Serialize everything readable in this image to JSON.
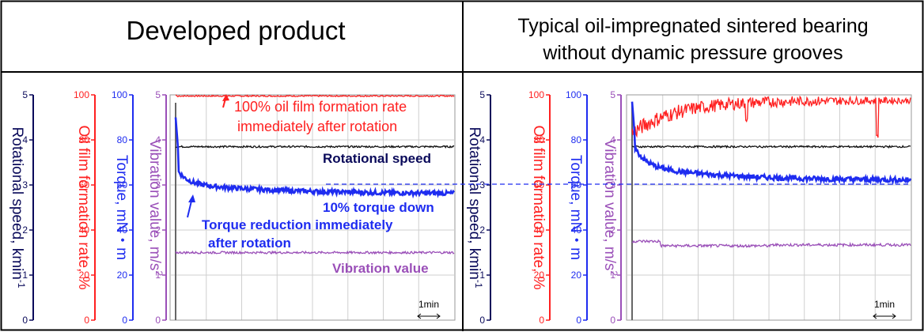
{
  "colors": {
    "rotational_speed": "#0a0a5a",
    "oil_film": "#ff2020",
    "torque": "#1e2cf0",
    "vibration": "#9a4fb8",
    "speed_trace": "#111111",
    "grid": "#cfcfcf",
    "frame": "#000000"
  },
  "chart_data": [
    {
      "type": "line",
      "title": "Developed product",
      "axes": [
        {
          "label": "Rotational speed, kmin",
          "label_sup": "-1",
          "range": [
            0,
            5
          ],
          "ticks": [
            "0",
            "1",
            "2",
            "3",
            "4",
            "5"
          ],
          "color_key": "rotational_speed"
        },
        {
          "label": "Oil film formation rate, %",
          "range": [
            0,
            100
          ],
          "ticks": [
            "0",
            "20",
            "40",
            "60",
            "80",
            "100"
          ],
          "color_key": "oil_film"
        },
        {
          "label": "Torque, mN・m",
          "range": [
            0,
            100
          ],
          "ticks": [
            "0",
            "20",
            "40",
            "60",
            "80",
            "100"
          ],
          "color_key": "torque"
        },
        {
          "label": "Vibration value, m/s",
          "label_sup": "2",
          "range": [
            0,
            5
          ],
          "ticks": [
            "0",
            "1",
            "2",
            "3",
            "4",
            "5"
          ],
          "color_key": "vibration"
        }
      ],
      "series": [
        {
          "key": "oil_film",
          "color_key": "oil_film",
          "behavior": "jump_to_full",
          "steady": 99.5,
          "noise": 0.3
        },
        {
          "key": "speed",
          "color_key": "speed_trace",
          "steady": 3.85,
          "noise": 0.02
        },
        {
          "key": "torque",
          "color_key": "torque",
          "peak": 4.5,
          "steady": 2.8,
          "decay_start": 3.4,
          "fast_tau": 0.035,
          "slow_tau": 0.35,
          "noise": 0.05
        },
        {
          "key": "vibration",
          "color_key": "vibration",
          "steady": 1.5,
          "noise": 0.025
        }
      ],
      "annotations": {
        "oil_film_line1": "100% oil film formation rate",
        "oil_film_line2": "immediately after rotation",
        "speed": "Rotational speed",
        "torque_down": "10% torque down",
        "torque_reduction_line1": "Torque reduction immediately",
        "torque_reduction_line2": "after rotation",
        "vibration": "Vibration value"
      },
      "time_scale_label": "1min",
      "grid": true
    },
    {
      "type": "line",
      "title_line1": "Typical oil-impregnated sintered bearing",
      "title_line2": "without dynamic pressure grooves",
      "axes": [
        {
          "label": "Rotational speed, kmin",
          "label_sup": "-1",
          "range": [
            0,
            5
          ],
          "ticks": [
            "0",
            "1",
            "2",
            "3",
            "4",
            "5"
          ],
          "color_key": "rotational_speed"
        },
        {
          "label": "Oil film formation rate, %",
          "range": [
            0,
            100
          ],
          "ticks": [
            "0",
            "20",
            "40",
            "60",
            "80",
            "100"
          ],
          "color_key": "oil_film"
        },
        {
          "label": "Torque, mN・m",
          "range": [
            0,
            100
          ],
          "ticks": [
            "0",
            "20",
            "40",
            "60",
            "80",
            "100"
          ],
          "color_key": "torque"
        },
        {
          "label": "Vibration value, m/s",
          "label_sup": "2",
          "range": [
            0,
            5
          ],
          "ticks": [
            "0",
            "1",
            "2",
            "3",
            "4",
            "5"
          ],
          "color_key": "vibration"
        }
      ],
      "series": [
        {
          "key": "oil_film",
          "color_key": "oil_film",
          "behavior": "gradual_rise",
          "start": 83,
          "steady": 97.5,
          "noise": 2.2
        },
        {
          "key": "speed",
          "color_key": "speed_trace",
          "steady": 3.85,
          "noise": 0.02
        },
        {
          "key": "torque",
          "color_key": "torque",
          "peak": 4.85,
          "steady": 3.1,
          "decay_start": 3.95,
          "fast_tau": 0.04,
          "slow_tau": 0.3,
          "noise": 0.055
        },
        {
          "key": "vibration",
          "color_key": "vibration",
          "steady": 1.75,
          "step_to": 1.72,
          "noise": 0.03
        }
      ],
      "time_scale_label": "1min",
      "grid": true
    }
  ]
}
